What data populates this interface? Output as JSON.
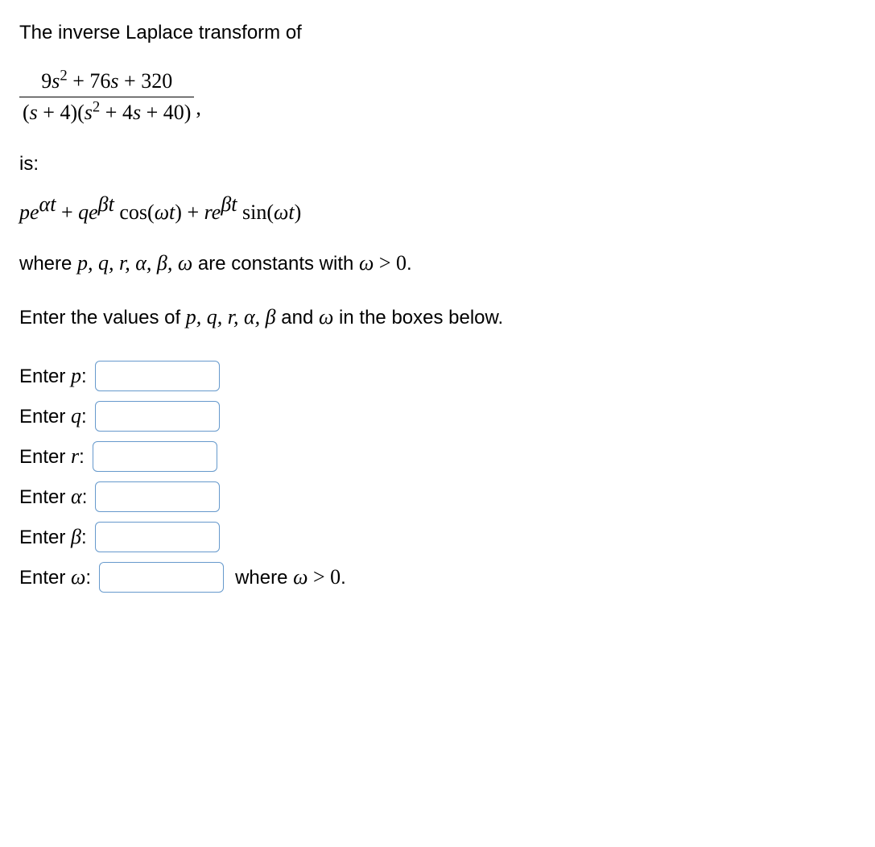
{
  "intro": "The inverse Laplace transform of",
  "fraction": {
    "numerator": {
      "coef1": "9",
      "var1": "s",
      "exp1": "2",
      "plus1": " + ",
      "coef2": "76",
      "var2": "s",
      "plus2": " + ",
      "const": "320"
    },
    "denominator": {
      "open1": "(",
      "var1": "s",
      "plus1": " + ",
      "const1": "4",
      "close1": ")(",
      "var2": "s",
      "exp2": "2",
      "plus2": " + ",
      "coef3": "4",
      "var3": "s",
      "plus3": " + ",
      "const2": "40",
      "close2": ")"
    },
    "comma": ","
  },
  "is_label": "is:",
  "formula": {
    "p": "p",
    "e1": "e",
    "alpha": "α",
    "t1": "t",
    "plus1": " + ",
    "q": "q",
    "e2": "e",
    "beta1": "β",
    "t2": "t",
    "cos": " cos",
    "open1": "(",
    "omega1": "ω",
    "t3": "t",
    "close1": ")",
    "plus2": " + ",
    "r": "r",
    "e3": "e",
    "beta2": "β",
    "t4": "t",
    "sin": " sin",
    "open2": "(",
    "omega2": "ω",
    "t5": "t",
    "close2": ")"
  },
  "where_line": {
    "prefix": "where ",
    "vars": "p, q, r, α, β, ω",
    "mid": " are constants with ",
    "cond_var": "ω",
    "cond_op": " > ",
    "cond_val": "0",
    "period": "."
  },
  "enter_values_line": {
    "prefix": "Enter the values of ",
    "vars": "p, q, r, α, β",
    "and": " and ",
    "omega": "ω",
    "suffix": " in the boxes below."
  },
  "inputs": {
    "p": {
      "prefix": "Enter ",
      "var": "p",
      "colon": ":"
    },
    "q": {
      "prefix": "Enter ",
      "var": "q",
      "colon": ":"
    },
    "r": {
      "prefix": "Enter ",
      "var": "r",
      "colon": ":"
    },
    "alpha": {
      "prefix": "Enter ",
      "var": "α",
      "colon": ":"
    },
    "beta": {
      "prefix": "Enter ",
      "var": "β",
      "colon": ":"
    },
    "omega": {
      "prefix": "Enter ",
      "var": "ω",
      "colon": ":"
    }
  },
  "omega_note": {
    "where": "where ",
    "var": "ω",
    "op": " > ",
    "val": "0",
    "period": "."
  }
}
